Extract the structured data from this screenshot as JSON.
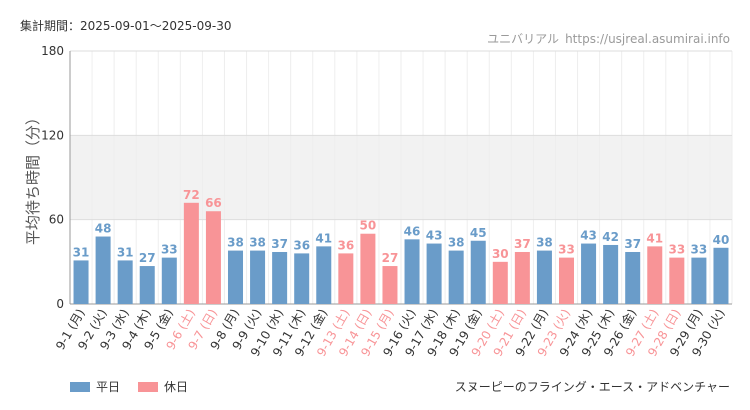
{
  "header": {
    "period_label": "集計期間：2025-09-01～2025-09-30",
    "site_name": "ユニバリアル",
    "site_url": "https://usjreal.asumirai.info"
  },
  "footer": {
    "attraction_name": "スヌーピーのフライング・エース・アドベンチャー"
  },
  "colors": {
    "weekday": "#6a9cc9",
    "holiday": "#f89497",
    "band": "#f2f2f2",
    "grid": "#dddddd"
  },
  "chart_data": {
    "type": "bar",
    "ylabel": "平均待ち時間（分）",
    "ylim": [
      0,
      180
    ],
    "yticks": [
      0,
      60,
      120,
      180
    ],
    "shaded_band": [
      60,
      120
    ],
    "legend": [
      {
        "label": "平日",
        "kind": "weekday"
      },
      {
        "label": "休日",
        "kind": "holiday"
      }
    ],
    "categories": [
      "9-1 (月)",
      "9-2 (火)",
      "9-3 (水)",
      "9-4 (木)",
      "9-5 (金)",
      "9-6 (土)",
      "9-7 (日)",
      "9-8 (月)",
      "9-9 (火)",
      "9-10 (水)",
      "9-11 (木)",
      "9-12 (金)",
      "9-13 (土)",
      "9-14 (日)",
      "9-15 (月)",
      "9-16 (火)",
      "9-17 (水)",
      "9-18 (木)",
      "9-19 (金)",
      "9-20 (土)",
      "9-21 (日)",
      "9-22 (月)",
      "9-23 (火)",
      "9-24 (水)",
      "9-25 (木)",
      "9-26 (金)",
      "9-27 (土)",
      "9-28 (日)",
      "9-29 (月)",
      "9-30 (火)"
    ],
    "values": [
      31,
      48,
      31,
      27,
      33,
      72,
      66,
      38,
      38,
      37,
      36,
      41,
      36,
      50,
      27,
      46,
      43,
      38,
      45,
      30,
      37,
      38,
      33,
      43,
      42,
      37,
      41,
      33,
      33,
      40
    ],
    "kinds": [
      "weekday",
      "weekday",
      "weekday",
      "weekday",
      "weekday",
      "holiday",
      "holiday",
      "weekday",
      "weekday",
      "weekday",
      "weekday",
      "weekday",
      "holiday",
      "holiday",
      "holiday",
      "weekday",
      "weekday",
      "weekday",
      "weekday",
      "holiday",
      "holiday",
      "weekday",
      "holiday",
      "weekday",
      "weekday",
      "weekday",
      "holiday",
      "holiday",
      "weekday",
      "weekday"
    ]
  }
}
